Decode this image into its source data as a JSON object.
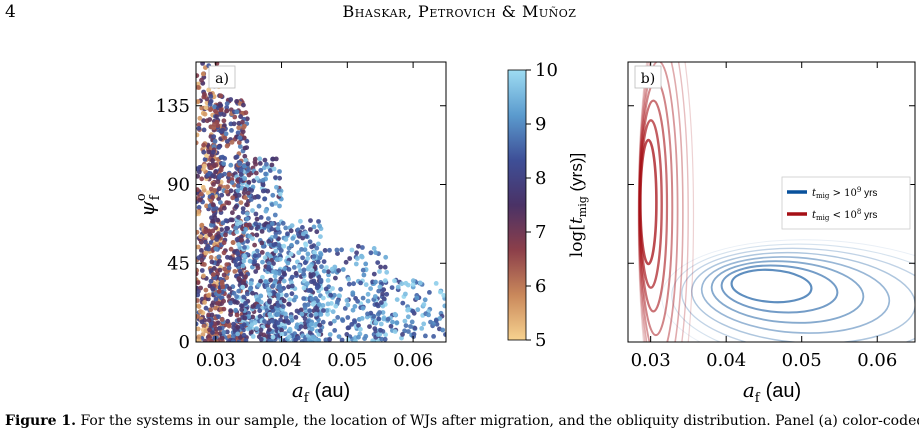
{
  "page": {
    "number": "4",
    "running_head": "Bhaskar, Petrovich & Muñoz",
    "caption_label": "Figure 1.",
    "caption_text": "For the systems in our sample, the location of WJs after migration, and the obliquity distribution. Panel (a) color-coded"
  },
  "chart_data": [
    {
      "type": "scatter",
      "panel_label": "a)",
      "xlabel_var": "a",
      "xlabel_sub": "f",
      "xlabel_unit": "(au)",
      "ylabel_var": "ψ",
      "ylabel_sub": "f",
      "ylabel_sup": "o",
      "xlim": [
        0.027,
        0.065
      ],
      "ylim": [
        0,
        160
      ],
      "xticks": [
        0.03,
        0.04,
        0.05,
        0.06
      ],
      "xtick_labels": [
        "0.03",
        "0.04",
        "0.05",
        "0.06"
      ],
      "yticks": [
        0,
        45,
        90,
        135
      ],
      "ytick_labels": [
        "0",
        "45",
        "90",
        "135"
      ],
      "colorbar": {
        "label": "log[t_mig (yrs)]",
        "label_main": "log[",
        "label_var": "t",
        "label_sub": "mig",
        "label_unit": " (yrs)]",
        "range": [
          5,
          10
        ],
        "ticks": [
          5,
          6,
          7,
          8,
          9,
          10
        ],
        "tick_labels": [
          "5",
          "6",
          "7",
          "8",
          "9",
          "10"
        ],
        "colors": [
          "#f7d28f",
          "#c9885b",
          "#8c3f4a",
          "#4a3266",
          "#3e4f97",
          "#5b9bce",
          "#9edcf2"
        ]
      },
      "groups": [
        {
          "x_range": [
            0.027,
            0.031
          ],
          "y_range": [
            0,
            160
          ],
          "log_t_range": [
            5.0,
            8.5
          ],
          "count": 380
        },
        {
          "x_range": [
            0.029,
            0.035
          ],
          "y_range": [
            0,
            140
          ],
          "log_t_range": [
            6.0,
            9.0
          ],
          "count": 480
        },
        {
          "x_range": [
            0.033,
            0.04
          ],
          "y_range": [
            0,
            105
          ],
          "log_t_range": [
            7.0,
            10.0
          ],
          "count": 420
        },
        {
          "x_range": [
            0.038,
            0.046
          ],
          "y_range": [
            0,
            70
          ],
          "log_t_range": [
            7.5,
            10.0
          ],
          "count": 320
        },
        {
          "x_range": [
            0.044,
            0.056
          ],
          "y_range": [
            0,
            55
          ],
          "log_t_range": [
            7.8,
            10.0
          ],
          "count": 240
        },
        {
          "x_range": [
            0.054,
            0.065
          ],
          "y_range": [
            2,
            36
          ],
          "log_t_range": [
            8.0,
            10.0
          ],
          "count": 110
        }
      ]
    },
    {
      "type": "contour",
      "panel_label": "b)",
      "xlabel_var": "a",
      "xlabel_sub": "f",
      "xlabel_unit": "(au)",
      "xlim": [
        0.027,
        0.065
      ],
      "ylim": [
        0,
        160
      ],
      "xticks": [
        0.03,
        0.04,
        0.05,
        0.06
      ],
      "xtick_labels": [
        "0.03",
        "0.04",
        "0.05",
        "0.06"
      ],
      "legend_position": "upper-right",
      "series": [
        {
          "name": "t_mig > 10^9 yrs",
          "legend_var": "t",
          "legend_sub": "mig",
          "legend_rel": " > 10",
          "legend_exp": "9",
          "legend_unit": " yrs",
          "color": "#08519c",
          "density_peak": {
            "a": 0.045,
            "psi": 30
          }
        },
        {
          "name": "t_mig < 10^8 yrs",
          "legend_var": "t",
          "legend_sub": "mig",
          "legend_rel": " < 10",
          "legend_exp": "8",
          "legend_unit": " yrs",
          "color": "#a50f15",
          "density_peak": {
            "a": 0.0295,
            "psi": 85
          }
        }
      ]
    }
  ]
}
